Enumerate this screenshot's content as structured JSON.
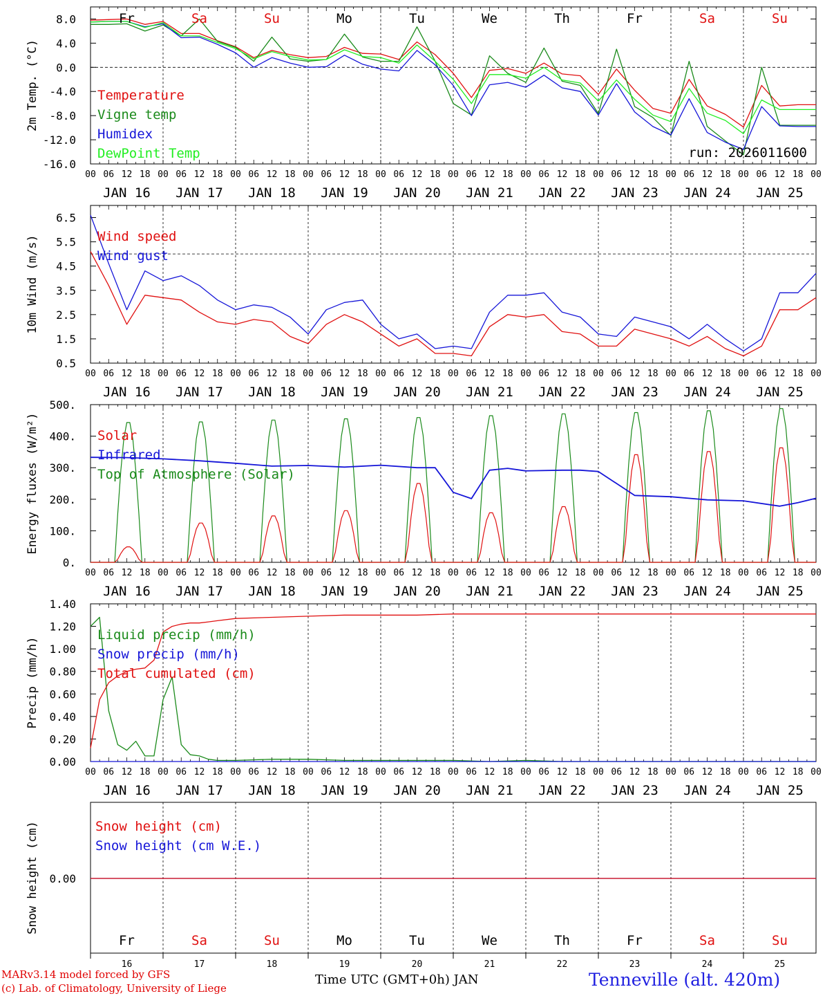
{
  "chart_data": [
    {
      "type": "line",
      "ylabel": "2m Temp. (°C)",
      "ylim": [
        -16,
        10
      ],
      "yticks": [
        "8.0",
        "4.0",
        "0.0",
        "-4.0",
        "-8.0",
        "-12.0",
        "-16.0"
      ],
      "ref_line": 0,
      "run_label": "run: 2026011600",
      "weekdays": [
        {
          "label": "Fr",
          "color": "#000000"
        },
        {
          "label": "Sa",
          "color": "#e01010"
        },
        {
          "label": "Su",
          "color": "#e01010"
        },
        {
          "label": "Mo",
          "color": "#000000"
        },
        {
          "label": "Tu",
          "color": "#000000"
        },
        {
          "label": "We",
          "color": "#000000"
        },
        {
          "label": "Th",
          "color": "#000000"
        },
        {
          "label": "Fr",
          "color": "#000000"
        },
        {
          "label": "Sa",
          "color": "#e01010"
        },
        {
          "label": "Su",
          "color": "#e01010"
        }
      ],
      "x_hours": [
        0,
        6,
        12,
        18,
        24,
        30,
        36,
        42,
        48,
        54,
        60,
        66,
        72,
        78,
        84,
        90,
        96,
        102,
        108,
        114,
        120,
        126,
        132,
        138,
        144,
        150,
        156,
        162,
        168,
        174,
        180,
        186,
        192,
        198,
        204,
        210,
        216,
        222,
        228,
        234,
        240
      ],
      "series": [
        {
          "name": "Temperature",
          "color": "#e01010",
          "values": [
            7.8,
            7.9,
            8.0,
            7.1,
            7.6,
            5.6,
            5.6,
            4.4,
            3.4,
            1.6,
            2.8,
            2.1,
            1.6,
            1.8,
            3.3,
            2.3,
            2.2,
            1.3,
            4.2,
            2.1,
            -1.0,
            -5.0,
            -0.5,
            -0.2,
            -1.0,
            0.7,
            -1.1,
            -1.4,
            -4.5,
            -0.3,
            -3.8,
            -6.8,
            -7.6,
            -2.0,
            -6.4,
            -7.8,
            -9.9,
            -3.0,
            -6.4,
            -6.2,
            -6.2
          ]
        },
        {
          "name": "Vigne temp",
          "color": "#1a8a1a",
          "values": [
            7.1,
            7.1,
            7.2,
            6.0,
            7.0,
            5.2,
            8.0,
            4.3,
            3.3,
            1.0,
            5.0,
            1.4,
            1.0,
            1.3,
            5.5,
            1.7,
            1.0,
            1.0,
            6.7,
            1.0,
            -6.0,
            -7.9,
            1.9,
            -1.0,
            -2.5,
            3.2,
            -2.3,
            -3.0,
            -7.7,
            3.0,
            -6.5,
            -8.3,
            -11.3,
            1.0,
            -9.8,
            -12.2,
            -14.5,
            0.0,
            -9.6,
            -9.6,
            -9.6
          ]
        },
        {
          "name": "Humidex",
          "color": "#1515d8",
          "values": [
            7.5,
            7.6,
            7.6,
            6.7,
            7.2,
            4.9,
            5.0,
            3.8,
            2.4,
            0.0,
            1.6,
            0.7,
            0.0,
            0.1,
            2.0,
            0.5,
            -0.3,
            -0.6,
            2.8,
            0.4,
            -3.0,
            -8.0,
            -2.9,
            -2.5,
            -3.3,
            -1.3,
            -3.4,
            -4.0,
            -7.9,
            -2.7,
            -7.4,
            -9.8,
            -11.2,
            -5.2,
            -10.8,
            -12.4,
            -13.6,
            -6.5,
            -9.7,
            -9.8,
            -9.8
          ]
        },
        {
          "name": "DewPoint Temp",
          "color": "#22ee22",
          "values": [
            7.5,
            7.6,
            7.6,
            6.6,
            7.4,
            5.2,
            5.2,
            4.1,
            3.1,
            1.4,
            2.6,
            1.8,
            1.2,
            1.3,
            2.9,
            1.8,
            1.6,
            0.7,
            3.7,
            1.0,
            -2.0,
            -6.0,
            -1.2,
            -1.2,
            -1.8,
            0.0,
            -2.1,
            -2.6,
            -5.6,
            -2.1,
            -5.3,
            -7.9,
            -9.0,
            -3.5,
            -7.6,
            -8.8,
            -11.0,
            -5.4,
            -7.0,
            -7.0,
            -7.0
          ]
        }
      ]
    },
    {
      "type": "line",
      "ylabel": "10m Wind (m/s)",
      "ylim": [
        0.5,
        7
      ],
      "yticks": [
        "6.5",
        "5.5",
        "4.5",
        "3.5",
        "2.5",
        "1.5",
        "0.5"
      ],
      "ref_line": 5,
      "x_hours": [
        0,
        6,
        12,
        18,
        24,
        30,
        36,
        42,
        48,
        54,
        60,
        66,
        72,
        78,
        84,
        90,
        96,
        102,
        108,
        114,
        120,
        126,
        132,
        138,
        144,
        150,
        156,
        162,
        168,
        174,
        180,
        186,
        192,
        198,
        204,
        210,
        216,
        222,
        228,
        234,
        240
      ],
      "series": [
        {
          "name": "Wind speed",
          "color": "#e01010",
          "values": [
            5.1,
            3.7,
            2.1,
            3.3,
            3.2,
            3.1,
            2.6,
            2.2,
            2.1,
            2.3,
            2.2,
            1.6,
            1.3,
            2.1,
            2.5,
            2.2,
            1.7,
            1.2,
            1.5,
            0.9,
            0.9,
            0.8,
            2.0,
            2.5,
            2.4,
            2.5,
            1.8,
            1.7,
            1.2,
            1.2,
            1.9,
            1.7,
            1.5,
            1.2,
            1.6,
            1.1,
            0.8,
            1.2,
            2.7,
            2.7,
            3.2
          ]
        },
        {
          "name": "Wind gust",
          "color": "#1515d8",
          "values": [
            6.6,
            4.6,
            2.7,
            4.3,
            3.9,
            4.1,
            3.7,
            3.1,
            2.7,
            2.9,
            2.8,
            2.4,
            1.7,
            2.7,
            3.0,
            3.1,
            2.1,
            1.5,
            1.7,
            1.1,
            1.2,
            1.1,
            2.6,
            3.3,
            3.3,
            3.4,
            2.6,
            2.4,
            1.7,
            1.6,
            2.4,
            2.2,
            2.0,
            1.5,
            2.1,
            1.5,
            1.0,
            1.5,
            3.4,
            3.4,
            4.2
          ]
        }
      ]
    },
    {
      "type": "line",
      "ylabel": "Energy fluxes (W/m²)",
      "ylim": [
        0,
        500
      ],
      "yticks": [
        "500.",
        "400.",
        "300.",
        "200.",
        "100.",
        "0."
      ],
      "solar_peaks": [
        50,
        127,
        150,
        167,
        255,
        160,
        180,
        348,
        358,
        370
      ],
      "toa_peaks": [
        450,
        452,
        458,
        462,
        466,
        472,
        478,
        482,
        488,
        495
      ],
      "infrared": {
        "x": [
          0,
          12,
          24,
          36,
          48,
          60,
          72,
          84,
          96,
          108,
          114,
          120,
          126,
          132,
          138,
          144,
          156,
          162,
          168,
          180,
          192,
          204,
          216,
          228,
          234,
          240
        ],
        "y": [
          333,
          332,
          328,
          322,
          314,
          305,
          307,
          302,
          308,
          300,
          300,
          222,
          202,
          292,
          298,
          290,
          292,
          292,
          288,
          212,
          208,
          198,
          195,
          178,
          189,
          203
        ]
      },
      "series": [
        {
          "name": "Solar",
          "color": "#e01010"
        },
        {
          "name": "Infrared",
          "color": "#1515d8"
        },
        {
          "name": "Top of Atmosphere (Solar)",
          "color": "#1a8a1a"
        }
      ]
    },
    {
      "type": "line",
      "ylabel": "Precip (mm/h)",
      "ylim": [
        0,
        1.4
      ],
      "yticks": [
        "1.40",
        "1.20",
        "1.00",
        "0.80",
        "0.60",
        "0.40",
        "0.20",
        "0.00"
      ],
      "x_hours": [
        0,
        3,
        6,
        9,
        12,
        15,
        18,
        21,
        24,
        27,
        30,
        33,
        36,
        39,
        42,
        48,
        60,
        72,
        84,
        96,
        108,
        120,
        132,
        144,
        156,
        168,
        180,
        192,
        204,
        216,
        228,
        240
      ],
      "series": [
        {
          "name": "Liquid precip (mm/h)",
          "color": "#1a8a1a",
          "values": [
            1.2,
            1.28,
            0.45,
            0.15,
            0.1,
            0.18,
            0.05,
            0.05,
            0.55,
            0.75,
            0.15,
            0.06,
            0.05,
            0.02,
            0.01,
            0.01,
            0.02,
            0.02,
            0.01,
            0.01,
            0.01,
            0.01,
            0.0,
            0.01,
            0.0,
            0.0,
            0.0,
            0.0,
            0.0,
            0.0,
            0.0,
            0.0
          ]
        },
        {
          "name": "Snow precip (mm/h)",
          "color": "#1515d8",
          "values": [
            0,
            0,
            0,
            0,
            0,
            0,
            0,
            0,
            0,
            0,
            0,
            0,
            0,
            0,
            0,
            0,
            0,
            0,
            0,
            0,
            0,
            0,
            0,
            0,
            0,
            0,
            0,
            0,
            0,
            0,
            0,
            0
          ]
        },
        {
          "name": "Total cumulated (cm)",
          "color": "#e01010",
          "values": [
            0.12,
            0.55,
            0.7,
            0.76,
            0.8,
            0.82,
            0.83,
            0.9,
            1.15,
            1.2,
            1.22,
            1.23,
            1.23,
            1.24,
            1.25,
            1.27,
            1.28,
            1.29,
            1.3,
            1.3,
            1.3,
            1.31,
            1.31,
            1.31,
            1.31,
            1.31,
            1.31,
            1.31,
            1.31,
            1.31,
            1.31,
            1.31
          ]
        }
      ]
    },
    {
      "type": "line",
      "ylabel": "Snow height (cm)",
      "yticks": [
        "0.00"
      ],
      "series": [
        {
          "name": "Snow height (cm)",
          "color": "#e01010",
          "values": [
            0.0,
            0.0
          ]
        },
        {
          "name": "Snow height (cm W.E.)",
          "color": "#1515d8",
          "values": [
            0.0,
            0.0
          ]
        }
      ],
      "day_numbers": [
        "16",
        "17",
        "18",
        "19",
        "20",
        "21",
        "22",
        "23",
        "24",
        "25"
      ]
    }
  ],
  "hour_ticks": [
    "00",
    "06",
    "12",
    "18"
  ],
  "date_labels": [
    "JAN 16",
    "JAN 17",
    "JAN 18",
    "JAN 19",
    "JAN 20",
    "JAN 21",
    "JAN 22",
    "JAN 23",
    "JAN 24",
    "JAN 25"
  ],
  "footer": {
    "credit_line1": "MARv3.14 model forced by GFS",
    "credit_line2": "(c) Lab. of Climatology, University of Liege",
    "xaxis_title": "Time UTC (GMT+0h) JAN",
    "station": "Tenneville (alt. 420m)"
  }
}
